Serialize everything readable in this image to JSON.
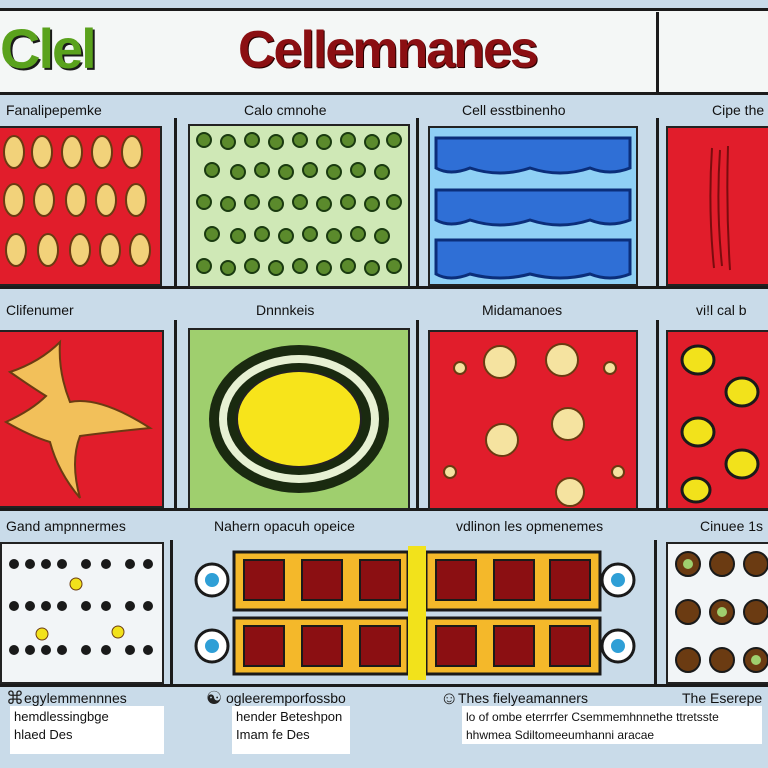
{
  "title": {
    "left": "Clel",
    "main": "Cellemnanes"
  },
  "row1": {
    "labels": [
      "Fanalipepemke",
      "Calo cmnohe",
      "Cell esstbinenho",
      "Cipe the"
    ]
  },
  "row2": {
    "labels": [
      "Clifenumer",
      "Dnnnkeis",
      "Midamanoes",
      "vi!l cal b"
    ]
  },
  "row3": {
    "labels": [
      "Gand ampnnermes",
      "Nahern opacuh opeice",
      "vdlinon les opmenemes",
      "Cinuee 1s"
    ]
  },
  "footer": {
    "col1": {
      "icon": "⌘",
      "heading": "egylemmennnes",
      "lines": [
        "hemdlessingbge",
        "hlaed Des"
      ]
    },
    "col2": {
      "icon": "☯",
      "heading": "ogleeremporfossbo",
      "lines": [
        "hender Beteshpon",
        "Imam fe Des"
      ]
    },
    "col3": {
      "icon": "☺",
      "heading": "Thes fielyeamanners",
      "lines": [
        "lo of ombe eterrrfer Csemmemhnnethe ttretsste",
        "hhwmea Sdiltomeeumhanni aracae"
      ]
    },
    "col4": {
      "heading": "The Eserepe",
      "lines": []
    }
  },
  "colors": {
    "accent_red": "#e11d2b",
    "title_red": "#8b0f12",
    "title_green": "#5aa21d",
    "cell_green": "#5b8a2c",
    "blue": "#2f6fd6",
    "yellow": "#f2e21b"
  }
}
